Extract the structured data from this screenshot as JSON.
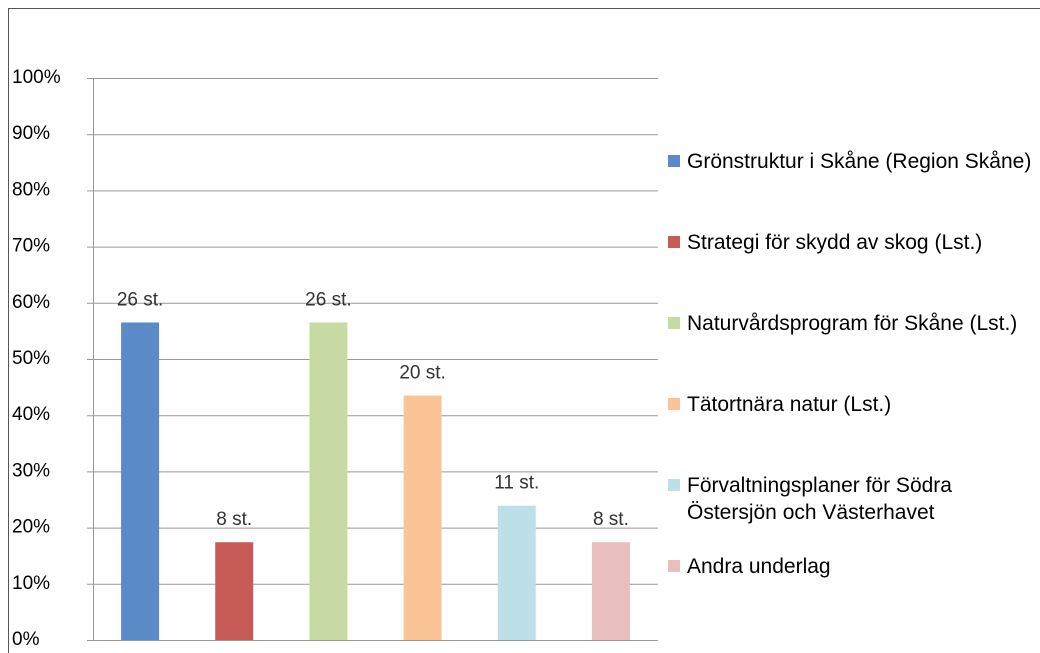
{
  "chart_data": {
    "type": "bar",
    "ylim": [
      0,
      100
    ],
    "yticks": [
      {
        "value": 0,
        "label": "0%"
      },
      {
        "value": 10,
        "label": "10%"
      },
      {
        "value": 20,
        "label": "20%"
      },
      {
        "value": 30,
        "label": "30%"
      },
      {
        "value": 40,
        "label": "40%"
      },
      {
        "value": 50,
        "label": "50%"
      },
      {
        "value": 60,
        "label": "60%"
      },
      {
        "value": 70,
        "label": "70%"
      },
      {
        "value": 80,
        "label": "80%"
      },
      {
        "value": 90,
        "label": "90%"
      },
      {
        "value": 100,
        "label": "100%"
      }
    ],
    "grid": true,
    "legend": "right",
    "series": [
      {
        "name": "Grönstruktur i Skåne (Region Skåne)",
        "color": "#5b8bc7",
        "values": [
          56.5
        ],
        "value_labels": [
          "26 st."
        ]
      },
      {
        "name": "Strategi för skydd av skog (Lst.)",
        "color": "#c65a57",
        "values": [
          17.4
        ],
        "value_labels": [
          "8 st."
        ]
      },
      {
        "name": "Naturvårdsprogram för Skåne (Lst.)",
        "color": "#c8daa4",
        "values": [
          56.5
        ],
        "value_labels": [
          "26 st."
        ]
      },
      {
        "name": "Tätortnära natur (Lst.)",
        "color": "#fac497",
        "values": [
          43.5
        ],
        "value_labels": [
          "20 st."
        ]
      },
      {
        "name": "Förvaltningsplaner för Södra Östersjön och Västerhavet",
        "color": "#bde0e8",
        "values": [
          23.9
        ],
        "value_labels": [
          "11 st."
        ]
      },
      {
        "name": "Andra underlag",
        "color": "#e8bebe",
        "values": [
          17.4
        ],
        "value_labels": [
          "8 st."
        ]
      }
    ]
  }
}
